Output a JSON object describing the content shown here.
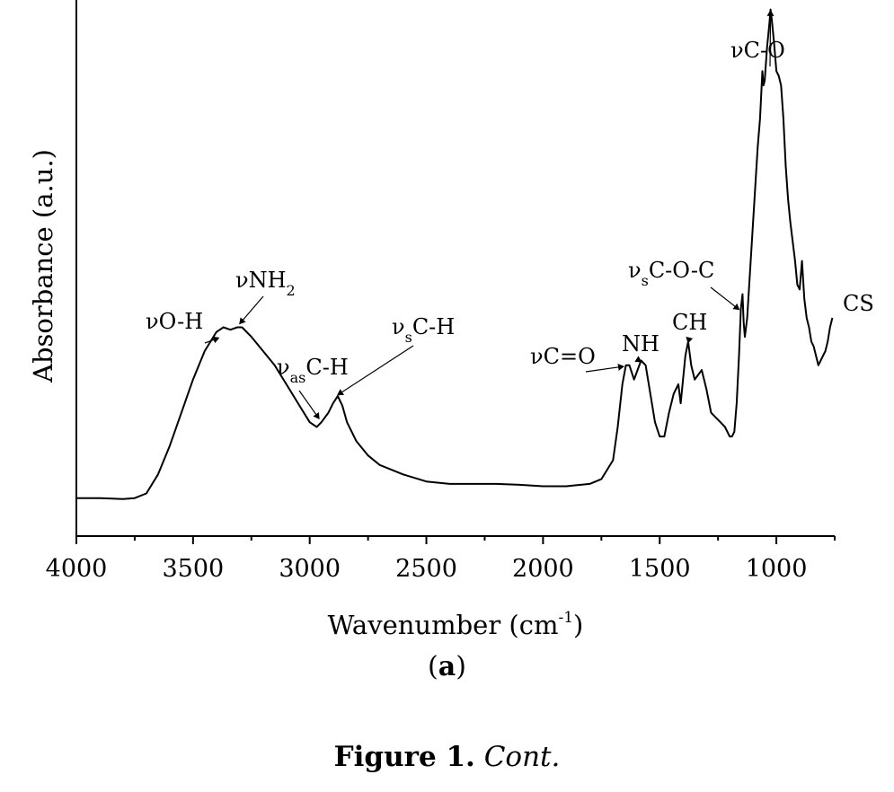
{
  "chart_data": {
    "type": "line",
    "title": "",
    "xlabel": "Wavenumber (cm",
    "xlabel_sup": "-1",
    "xlabel_close": ")",
    "ylabel": "Absorbance (a.u.)",
    "xlim": [
      4000,
      750
    ],
    "x_reversed": true,
    "ylim": [
      -0.08,
      1.05
    ],
    "y_ticks_shown": false,
    "grid": false,
    "x_ticks": [
      4000,
      3500,
      3000,
      2500,
      2000,
      1500,
      1000
    ],
    "series": [
      {
        "name": "CS",
        "x": [
          4000,
          3900,
          3800,
          3750,
          3700,
          3650,
          3600,
          3550,
          3500,
          3450,
          3400,
          3370,
          3340,
          3310,
          3290,
          3250,
          3200,
          3150,
          3100,
          3050,
          3000,
          2970,
          2950,
          2920,
          2900,
          2880,
          2860,
          2840,
          2800,
          2750,
          2700,
          2600,
          2500,
          2400,
          2300,
          2200,
          2100,
          2000,
          1900,
          1800,
          1750,
          1700,
          1680,
          1660,
          1645,
          1630,
          1610,
          1595,
          1580,
          1560,
          1540,
          1520,
          1500,
          1480,
          1460,
          1440,
          1420,
          1410,
          1400,
          1390,
          1378,
          1365,
          1350,
          1335,
          1320,
          1300,
          1280,
          1260,
          1240,
          1220,
          1200,
          1190,
          1180,
          1170,
          1160,
          1152,
          1145,
          1140,
          1135,
          1125,
          1110,
          1095,
          1080,
          1070,
          1065,
          1060,
          1055,
          1050,
          1040,
          1030,
          1025,
          1020,
          1010,
          1000,
          990,
          980,
          970,
          960,
          950,
          940,
          930,
          920,
          910,
          900,
          895,
          890,
          880,
          870,
          860,
          850,
          840,
          830,
          820,
          810,
          800,
          790,
          780,
          770,
          760
        ],
        "y": [
          0.0,
          0.0,
          -0.002,
          0.0,
          0.01,
          0.05,
          0.11,
          0.18,
          0.25,
          0.31,
          0.35,
          0.36,
          0.355,
          0.36,
          0.36,
          0.34,
          0.31,
          0.28,
          0.24,
          0.2,
          0.16,
          0.15,
          0.16,
          0.18,
          0.2,
          0.215,
          0.195,
          0.16,
          0.12,
          0.09,
          0.07,
          0.05,
          0.035,
          0.03,
          0.03,
          0.03,
          0.028,
          0.025,
          0.025,
          0.03,
          0.04,
          0.08,
          0.15,
          0.24,
          0.28,
          0.28,
          0.25,
          0.27,
          0.29,
          0.28,
          0.22,
          0.16,
          0.13,
          0.13,
          0.18,
          0.22,
          0.24,
          0.2,
          0.25,
          0.3,
          0.33,
          0.28,
          0.25,
          0.26,
          0.27,
          0.23,
          0.18,
          0.17,
          0.16,
          0.15,
          0.13,
          0.13,
          0.14,
          0.2,
          0.3,
          0.4,
          0.43,
          0.37,
          0.34,
          0.38,
          0.5,
          0.62,
          0.74,
          0.8,
          0.85,
          0.9,
          0.87,
          0.88,
          0.95,
          1.0,
          1.03,
          1.01,
          0.96,
          0.9,
          0.89,
          0.87,
          0.8,
          0.7,
          0.63,
          0.58,
          0.54,
          0.5,
          0.45,
          0.44,
          0.47,
          0.5,
          0.42,
          0.38,
          0.36,
          0.33,
          0.32,
          0.3,
          0.28,
          0.29,
          0.3,
          0.31,
          0.33,
          0.36,
          0.38
        ]
      }
    ],
    "series_label": "CS",
    "annotations": [
      {
        "id": "vOH",
        "text": "νO-H",
        "sub": "",
        "rest": "",
        "x": 3390,
        "y": 0.33
      },
      {
        "id": "vNH2",
        "text": "νNH",
        "sub": "2",
        "rest": "",
        "x": 3300,
        "y": 0.36
      },
      {
        "id": "vasCH",
        "text": "ν",
        "sub": "as",
        "rest": "C-H",
        "x": 2960,
        "y": 0.16
      },
      {
        "id": "vsCH",
        "text": "ν",
        "sub": "s",
        "rest": "C-H",
        "x": 2880,
        "y": 0.21
      },
      {
        "id": "vCO_double",
        "text": "νC=O",
        "sub": "",
        "rest": "",
        "x": 1655,
        "y": 0.27
      },
      {
        "id": "NH",
        "text": "NH",
        "sub": "",
        "rest": "",
        "x": 1580,
        "y": 0.28
      },
      {
        "id": "CH",
        "text": "CH",
        "sub": "",
        "rest": "",
        "x": 1378,
        "y": 0.32
      },
      {
        "id": "vsCOC",
        "text": "ν",
        "sub": "s",
        "rest": "C-O-C",
        "x": 1160,
        "y": 0.39
      },
      {
        "id": "vCO",
        "text": "νC-O",
        "sub": "",
        "rest": "",
        "x": 1025,
        "y": 1.02
      }
    ]
  },
  "panel_label": "a",
  "panel_label_open": "(",
  "panel_label_close": ")",
  "caption": {
    "label": "Figure 1.",
    "cont": "Cont."
  }
}
